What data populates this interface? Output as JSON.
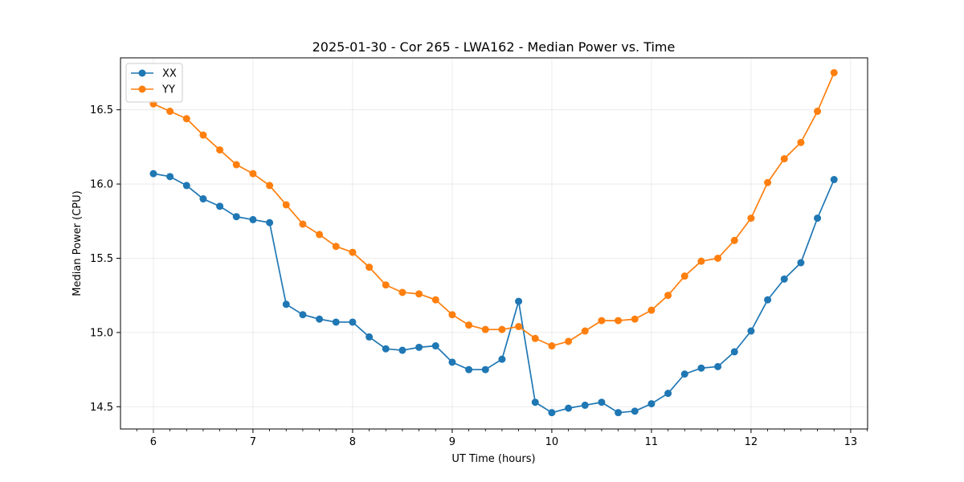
{
  "chart_data": {
    "type": "line",
    "title": "2025-01-30 - Cor 265 - LWA162 - Median Power vs. Time",
    "xlabel": "UT Time (hours)",
    "ylabel": "Median Power (CPU)",
    "xlim": [
      5.67,
      13.17
    ],
    "ylim": [
      14.35,
      16.85
    ],
    "xticks": [
      6,
      7,
      8,
      9,
      10,
      11,
      12,
      13
    ],
    "yticks": [
      14.5,
      15.0,
      15.5,
      16.0,
      16.5
    ],
    "grid": true,
    "legend_position": "top-left",
    "x": [
      6.0,
      6.1667,
      6.3333,
      6.5,
      6.6667,
      6.8333,
      7.0,
      7.1667,
      7.3333,
      7.5,
      7.6667,
      7.8333,
      8.0,
      8.1667,
      8.3333,
      8.5,
      8.6667,
      8.8333,
      9.0,
      9.1667,
      9.3333,
      9.5,
      9.6667,
      9.8333,
      10.0,
      10.1667,
      10.3333,
      10.5,
      10.6667,
      10.8333,
      11.0,
      11.1667,
      11.3333,
      11.5,
      11.6667,
      11.8333,
      12.0,
      12.1667,
      12.3333,
      12.5,
      12.6667,
      12.8333
    ],
    "series": [
      {
        "name": "XX",
        "color": "#1f77b4",
        "values": [
          16.07,
          16.05,
          15.99,
          15.9,
          15.85,
          15.78,
          15.76,
          15.74,
          15.19,
          15.12,
          15.09,
          15.07,
          15.07,
          14.97,
          14.89,
          14.88,
          14.9,
          14.91,
          14.8,
          14.75,
          14.75,
          14.82,
          15.21,
          14.53,
          14.46,
          14.49,
          14.51,
          14.53,
          14.46,
          14.47,
          14.52,
          14.59,
          14.72,
          14.76,
          14.77,
          14.87,
          15.01,
          15.22,
          15.36,
          15.47,
          15.77,
          16.03
        ]
      },
      {
        "name": "YY",
        "color": "#ff7f0e",
        "values": [
          16.54,
          16.49,
          16.44,
          16.33,
          16.23,
          16.13,
          16.07,
          15.99,
          15.86,
          15.73,
          15.66,
          15.58,
          15.54,
          15.44,
          15.32,
          15.27,
          15.26,
          15.22,
          15.12,
          15.05,
          15.02,
          15.02,
          15.04,
          14.96,
          14.91,
          14.94,
          15.01,
          15.08,
          15.08,
          15.09,
          15.15,
          15.25,
          15.38,
          15.48,
          15.5,
          15.62,
          15.77,
          16.01,
          16.17,
          16.28,
          16.49,
          16.75
        ]
      }
    ]
  }
}
